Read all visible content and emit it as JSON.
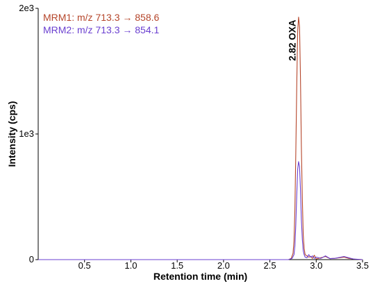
{
  "chart_data": {
    "type": "line",
    "xlabel": "Retention time (min)",
    "ylabel": "Intensity (cps)",
    "xlim": [
      0,
      3.5
    ],
    "ylim": [
      0,
      2000
    ],
    "x_ticks": [
      {
        "value": 0.5,
        "label": "0.5"
      },
      {
        "value": 1.0,
        "label": "1.0"
      },
      {
        "value": 1.5,
        "label": "1.5"
      },
      {
        "value": 2.0,
        "label": "2.0"
      },
      {
        "value": 2.5,
        "label": "2.5"
      },
      {
        "value": 3.0,
        "label": "3.0"
      },
      {
        "value": 3.5,
        "label": "3.5"
      }
    ],
    "y_ticks": [
      {
        "value": 0,
        "label": "0"
      },
      {
        "value": 1000,
        "label": "1e3"
      },
      {
        "value": 2000,
        "label": "2e3"
      }
    ],
    "grid": false,
    "legend_position": "top-left",
    "annotations": [
      {
        "x": 2.82,
        "y": 1920,
        "text": "2.82  OXA"
      }
    ],
    "series": [
      {
        "name": "MRM1: m/z 713.3 → 858.6",
        "color": "#b5452a",
        "x": [
          0,
          2.5,
          2.7,
          2.73,
          2.75,
          2.76,
          2.77,
          2.78,
          2.79,
          2.8,
          2.81,
          2.82,
          2.83,
          2.84,
          2.85,
          2.86,
          2.87,
          2.88,
          2.9,
          2.92,
          2.94,
          2.96,
          2.98,
          3.0,
          3.05,
          3.1,
          3.15,
          3.2,
          3.3,
          3.35,
          3.4,
          3.5
        ],
        "y": [
          0,
          0,
          0,
          10,
          50,
          150,
          400,
          850,
          1400,
          1820,
          1930,
          1850,
          1450,
          900,
          480,
          200,
          90,
          40,
          30,
          20,
          25,
          10,
          35,
          5,
          15,
          25,
          8,
          10,
          20,
          10,
          5,
          0
        ]
      },
      {
        "name": "MRM2: m/z 713.3 → 854.1",
        "color": "#6a3fd0",
        "x": [
          0,
          2.5,
          2.7,
          2.74,
          2.76,
          2.77,
          2.78,
          2.79,
          2.8,
          2.81,
          2.82,
          2.83,
          2.84,
          2.85,
          2.86,
          2.87,
          2.88,
          2.9,
          2.92,
          2.94,
          2.96,
          2.98,
          3.0,
          3.05,
          3.1,
          3.15,
          3.2,
          3.3,
          3.35,
          3.4,
          3.5
        ],
        "y": [
          0,
          0,
          0,
          10,
          40,
          110,
          280,
          520,
          720,
          780,
          740,
          560,
          320,
          160,
          70,
          40,
          20,
          15,
          40,
          20,
          30,
          10,
          20,
          10,
          30,
          8,
          10,
          25,
          15,
          5,
          0
        ]
      }
    ]
  }
}
